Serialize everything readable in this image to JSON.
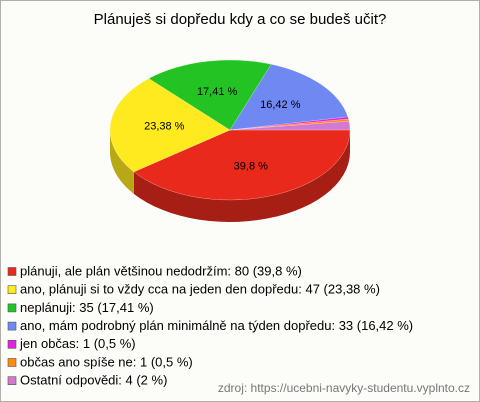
{
  "chart_data": {
    "type": "pie",
    "title": "Plánuješ si dopředu kdy a co se budeš učit?",
    "categories": [
      "plánuji, ale plán většinou nedodržím: 80 (39,8 %)",
      "ano, plánuji si to vždy cca na jeden den dopředu: 47 (23,38 %)",
      "neplánuji: 35 (17,41 %)",
      "ano, mám podrobný plán minimálně na týden dopředu: 33 (16,42 %)",
      "jen občas: 1 (0,5 %)",
      "občas ano spíše ne: 1 (0,5 %)",
      "Ostatní odpovědi: 4 (2 %)"
    ],
    "values": [
      39.8,
      23.38,
      17.41,
      16.42,
      0.5,
      0.5,
      2
    ],
    "value_labels": [
      "39,8 %",
      "23,38 %",
      "17,41 %",
      "16,42 %",
      null,
      null,
      null
    ],
    "colors": [
      "#e8291c",
      "#ffea1f",
      "#22c322",
      "#6f88f2",
      "#e322e3",
      "#ff8a10",
      "#d27ad2"
    ],
    "source": "zdroj: https://ucebni-navyky-studentu.vyplnto.cz"
  }
}
